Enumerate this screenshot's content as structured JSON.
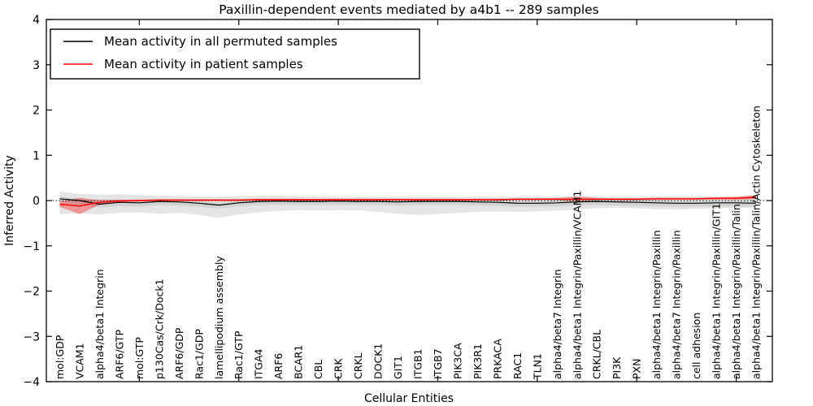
{
  "figure": {
    "background": "#ffffff",
    "frame_color": "#000000",
    "zero_line_style": "dotted"
  },
  "chart_data": {
    "type": "line",
    "title": "Paxillin-dependent events mediated by a4b1 -- 289 samples",
    "xlabel": "Cellular Entities",
    "ylabel": "Inferred Activity",
    "ylim": [
      -4,
      4
    ],
    "xlim_units": 36,
    "grid": false,
    "legend_position": "upper left",
    "zero_line": true,
    "ytick_values": [
      4,
      3,
      2,
      1,
      0,
      -1,
      -2,
      -3,
      -4
    ],
    "ytick_labels": [
      "4",
      "3",
      "2",
      "1",
      "0",
      "−1",
      "−2",
      "−3",
      "−4"
    ],
    "xtick_indices": [
      4,
      9,
      14,
      19,
      24,
      29,
      34
    ],
    "categories": [
      "mol:GDP",
      "VCAM1",
      "alpha4/beta1 Integrin",
      "ARF6/GTP",
      "mol:GTP",
      "p130Cas/Crk/Dock1",
      "ARF6/GDP",
      "Rac1/GDP",
      "lamellipodium assembly",
      "Rac1/GTP",
      "ITGA4",
      "ARF6",
      "BCAR1",
      "CBL",
      "CRK",
      "CRKL",
      "DOCK1",
      "GIT1",
      "ITGB1",
      "ITGB7",
      "PIK3CA",
      "PIK3R1",
      "PRKACA",
      "RAC1",
      "TLN1",
      "alpha4/beta7 Integrin",
      "alpha4/beta1 Integrin/Paxillin/VCAM1",
      "CRKL/CBL",
      "PI3K",
      "PXN",
      "alpha4/beta1 Integrin/Paxillin",
      "alpha4/beta7 Integrin/Paxillin",
      "cell adhesion",
      "alpha4/beta1 Integrin/Paxillin/GIT1",
      "alpha4/beta1 Integrin/Paxillin/Talin",
      "alpha4/beta1 Integrin/Paxillin/Talin/Actin Cytoskeleton"
    ],
    "series": [
      {
        "name": "Mean activity in all permuted samples",
        "color": "#000000",
        "line_width": 1.2,
        "band_color": "rgba(0,0,0,0.10)",
        "values": [
          0.04,
          0.0,
          -0.08,
          -0.04,
          -0.05,
          -0.02,
          -0.03,
          -0.06,
          -0.1,
          -0.05,
          -0.02,
          -0.01,
          -0.02,
          -0.02,
          -0.01,
          -0.02,
          -0.02,
          -0.03,
          -0.02,
          -0.02,
          -0.02,
          -0.03,
          -0.04,
          -0.06,
          -0.06,
          -0.05,
          -0.03,
          -0.02,
          -0.03,
          -0.04,
          -0.05,
          -0.06,
          -0.06,
          -0.05,
          -0.05,
          -0.06
        ],
        "band_upper": [
          0.2,
          0.15,
          0.13,
          0.14,
          0.12,
          0.11,
          0.1,
          0.09,
          0.08,
          0.1,
          0.1,
          0.1,
          0.09,
          0.09,
          0.08,
          0.08,
          0.08,
          0.08,
          0.08,
          0.08,
          0.08,
          0.08,
          0.08,
          0.08,
          0.08,
          0.08,
          0.1,
          0.08,
          0.08,
          0.08,
          0.09,
          0.09,
          0.09,
          0.09,
          0.1,
          0.1
        ],
        "band_lower": [
          -0.3,
          -0.28,
          -0.31,
          -0.27,
          -0.26,
          -0.29,
          -0.27,
          -0.32,
          -0.38,
          -0.31,
          -0.26,
          -0.23,
          -0.21,
          -0.22,
          -0.21,
          -0.22,
          -0.25,
          -0.29,
          -0.32,
          -0.3,
          -0.27,
          -0.25,
          -0.24,
          -0.25,
          -0.24,
          -0.22,
          -0.2,
          -0.17,
          -0.16,
          -0.17,
          -0.19,
          -0.2,
          -0.18,
          -0.17,
          -0.16,
          -0.16
        ]
      },
      {
        "name": "Mean activity in patient samples",
        "color": "#ff0000",
        "line_width": 1.4,
        "band_color": "rgba(255,0,0,0.35)",
        "values": [
          -0.08,
          -0.12,
          -0.04,
          -0.01,
          0.0,
          0.01,
          0.01,
          0.01,
          0.01,
          0.01,
          0.02,
          0.02,
          0.02,
          0.02,
          0.02,
          0.02,
          0.02,
          0.02,
          0.02,
          0.02,
          0.02,
          0.02,
          0.02,
          0.03,
          0.03,
          0.03,
          0.03,
          0.03,
          0.03,
          0.03,
          0.04,
          0.04,
          0.04,
          0.05,
          0.05,
          0.07
        ],
        "band_upper": [
          -0.02,
          0.06,
          0.01,
          0.02,
          0.02,
          0.03,
          0.03,
          0.03,
          0.03,
          0.03,
          0.04,
          0.04,
          0.04,
          0.04,
          0.04,
          0.04,
          0.04,
          0.04,
          0.04,
          0.04,
          0.04,
          0.04,
          0.04,
          0.05,
          0.05,
          0.06,
          0.09,
          0.06,
          0.05,
          0.05,
          0.06,
          0.06,
          0.06,
          0.07,
          0.08,
          0.12
        ],
        "band_lower": [
          -0.14,
          -0.3,
          -0.09,
          -0.04,
          -0.02,
          -0.01,
          -0.01,
          -0.01,
          -0.01,
          -0.01,
          0.0,
          0.0,
          0.0,
          0.0,
          0.0,
          0.0,
          0.0,
          0.0,
          0.0,
          0.0,
          0.0,
          0.0,
          0.0,
          0.01,
          0.01,
          0.01,
          -0.04,
          0.01,
          0.01,
          0.01,
          0.02,
          0.02,
          0.02,
          0.02,
          0.02,
          0.03
        ]
      }
    ]
  }
}
